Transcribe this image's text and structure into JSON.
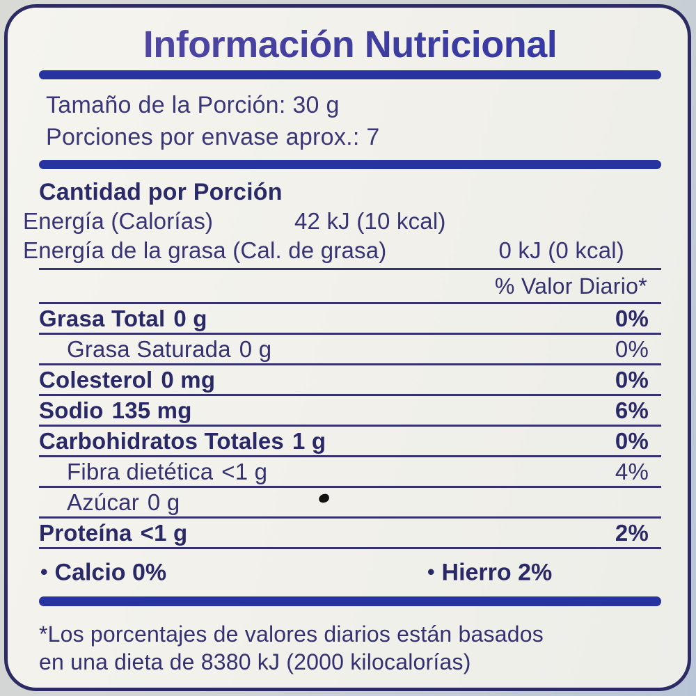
{
  "label": {
    "title": "Información Nutricional",
    "serving": {
      "size_line": "Tamaño de la Porción: 30 g",
      "per_container_line": "Porciones por envase aprox.: 7"
    },
    "amount_header": "Cantidad por Porción",
    "energy_rows": [
      {
        "name": "Energía (Calorías)",
        "value": "42 kJ (10 kcal)"
      },
      {
        "name": "Energía de la grasa (Cal. de grasa)",
        "value": "0 kJ (0 kcal)"
      }
    ],
    "daily_value_header": "% Valor Diario*",
    "nutrients": [
      {
        "name": "Grasa Total",
        "amount": "0 g",
        "dv": "0%"
      },
      {
        "name": "Grasa Saturada",
        "amount": "0 g",
        "dv": "0%"
      },
      {
        "name": "Colesterol",
        "amount": "0 mg",
        "dv": "0%"
      },
      {
        "name": "Sodio",
        "amount": "135 mg",
        "dv": "6%"
      },
      {
        "name": "Carbohidratos Totales",
        "amount": "1 g",
        "dv": "0%"
      },
      {
        "name": "Fibra dietética",
        "amount": "<1 g",
        "dv": "4%"
      },
      {
        "name": "Azúcar",
        "amount": "0 g",
        "dv": ""
      },
      {
        "name": "Proteína",
        "amount": "<1 g",
        "dv": "2%"
      }
    ],
    "minerals": [
      {
        "bullet": "•",
        "text": "Calcio 0%"
      },
      {
        "bullet": "•",
        "text": "Hierro 2%"
      }
    ],
    "footnote_line1": "*Los porcentajes de valores diarios están basados",
    "footnote_line2": "en una dieta de 8380 kJ (2000 kilocalorías)",
    "colors": {
      "text_navy": "#2d2b6a",
      "title_purple": "#564ba5",
      "title_blue": "#2f36a5",
      "bar_blue": "#2734a0",
      "separator": "#34326f",
      "border": "#2d2b63",
      "label_background": "#f1f0ea",
      "outer_background": "#cfd3d2"
    }
  }
}
